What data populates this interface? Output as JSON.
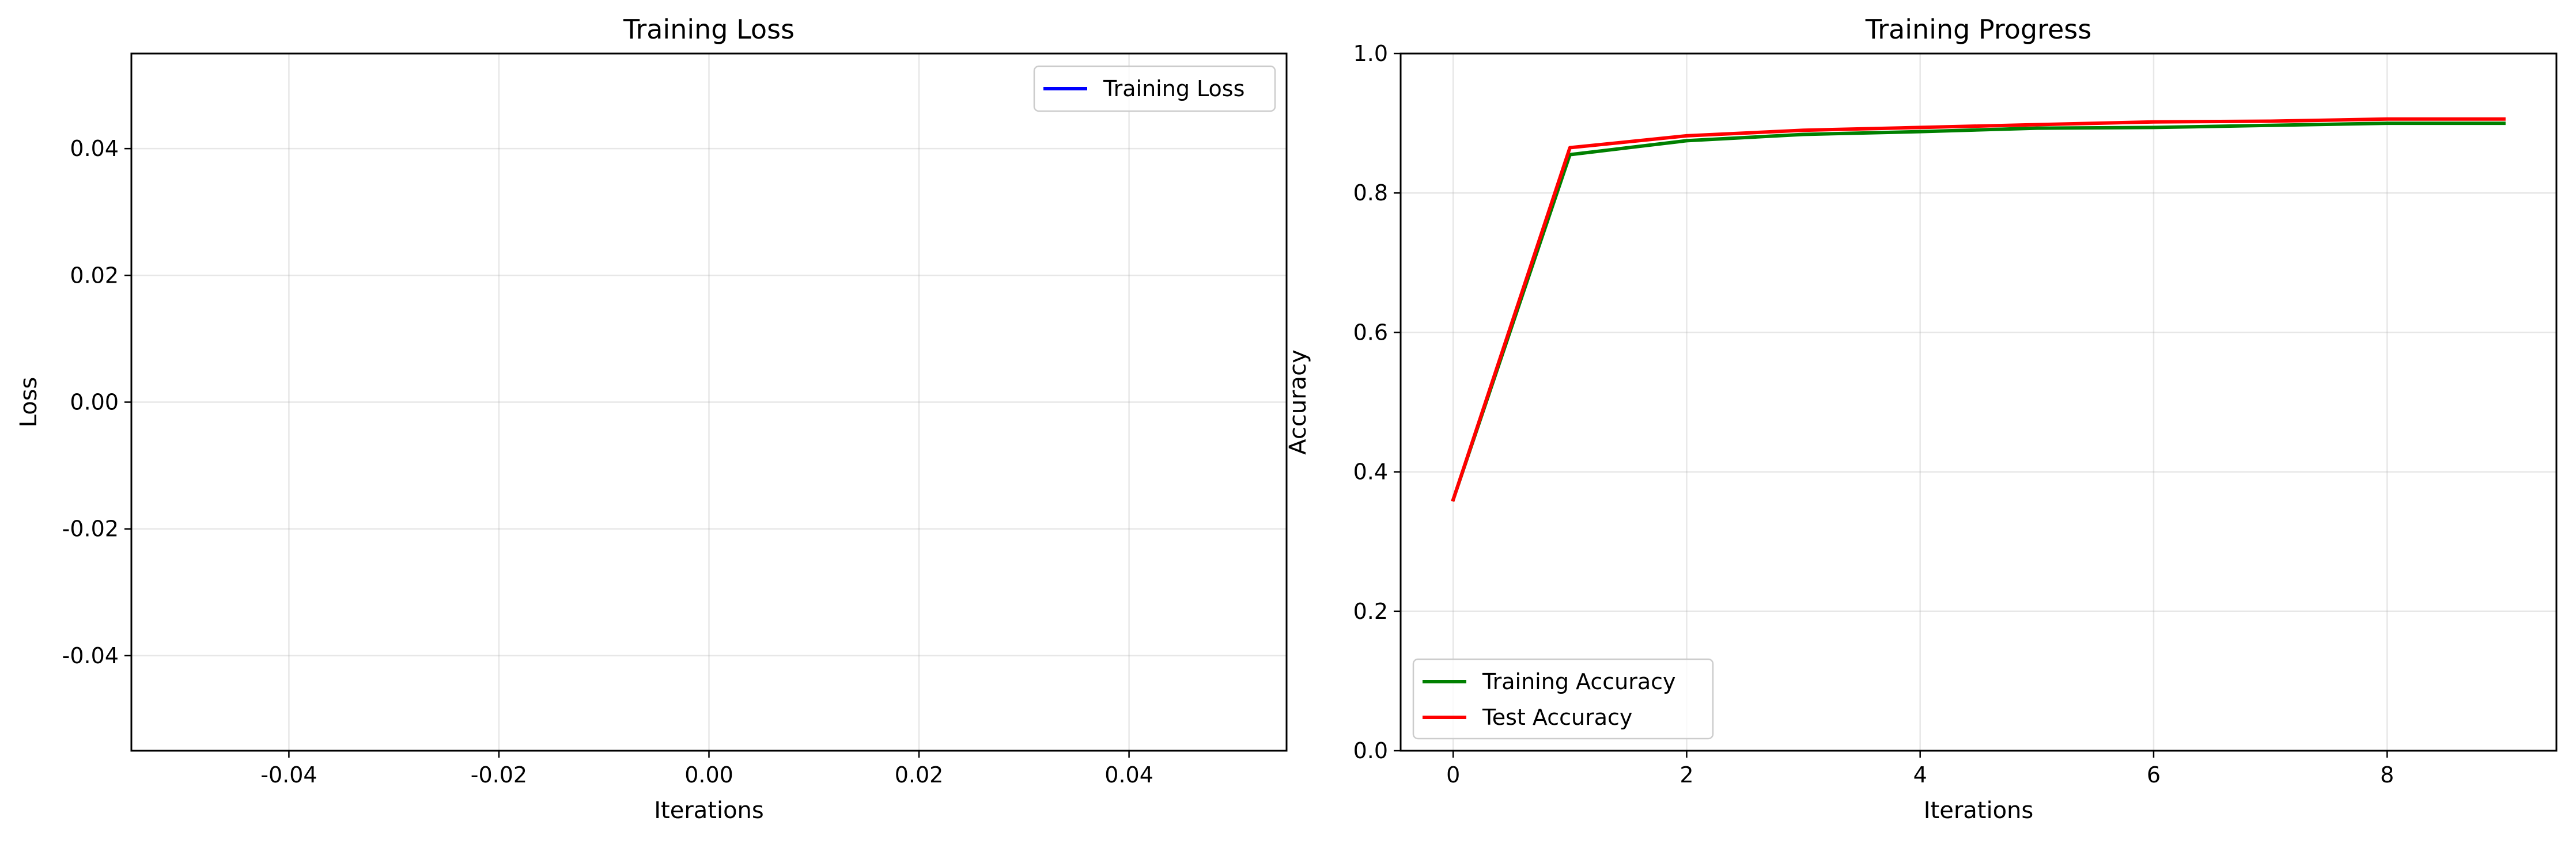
{
  "chart_data": [
    {
      "type": "line",
      "title": "Training Loss",
      "xlabel": "Iterations",
      "ylabel": "Loss",
      "xlim": [
        -0.055,
        0.055
      ],
      "ylim": [
        -0.055,
        0.055
      ],
      "x_ticks": [
        -0.04,
        -0.02,
        0.0,
        0.02,
        0.04
      ],
      "x_tick_labels": [
        "-0.04",
        "-0.02",
        "0.00",
        "0.02",
        "0.04"
      ],
      "y_ticks": [
        -0.04,
        -0.02,
        0.0,
        0.02,
        0.04
      ],
      "y_tick_labels": [
        "-0.04",
        "-0.02",
        "0.00",
        "0.02",
        "0.04"
      ],
      "grid": true,
      "legend_position": "top-right",
      "series": [
        {
          "name": "Training Loss",
          "color": "#0000ff",
          "x": [],
          "y": []
        }
      ]
    },
    {
      "type": "line",
      "title": "Training Progress",
      "xlabel": "Iterations",
      "ylabel": "Accuracy",
      "xlim": [
        -0.45,
        9.45
      ],
      "ylim": [
        0.0,
        1.0
      ],
      "x_ticks": [
        0,
        2,
        4,
        6,
        8
      ],
      "x_tick_labels": [
        "0",
        "2",
        "4",
        "6",
        "8"
      ],
      "y_ticks": [
        0.0,
        0.2,
        0.4,
        0.6,
        0.8,
        1.0
      ],
      "y_tick_labels": [
        "0.0",
        "0.2",
        "0.4",
        "0.6",
        "0.8",
        "1.0"
      ],
      "grid": true,
      "legend_position": "bottom-left",
      "series": [
        {
          "name": "Training Accuracy",
          "color": "#008000",
          "x": [
            0,
            1,
            2,
            3,
            4,
            5,
            6,
            7,
            8,
            9
          ],
          "y": [
            0.36,
            0.855,
            0.875,
            0.884,
            0.888,
            0.893,
            0.894,
            0.897,
            0.9,
            0.9
          ]
        },
        {
          "name": "Test Accuracy",
          "color": "#ff0000",
          "x": [
            0,
            1,
            2,
            3,
            4,
            5,
            6,
            7,
            8,
            9
          ],
          "y": [
            0.36,
            0.865,
            0.882,
            0.89,
            0.894,
            0.898,
            0.902,
            0.903,
            0.906,
            0.906
          ]
        }
      ]
    }
  ]
}
